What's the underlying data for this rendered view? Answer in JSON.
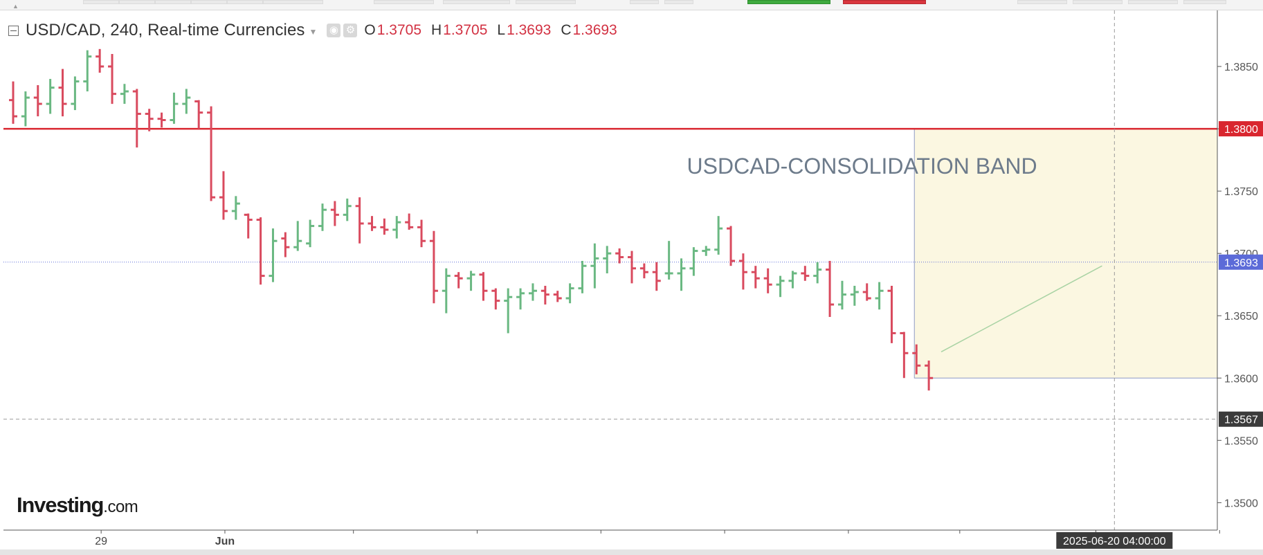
{
  "header": {
    "symbol": "USD/CAD, 240, Real-time Currencies",
    "ohlc": {
      "o_label": "O",
      "o": "1.3705",
      "h_label": "H",
      "h": "1.3705",
      "l_label": "L",
      "l": "1.3693",
      "c_label": "C",
      "c": "1.3693"
    }
  },
  "brand": {
    "main": "Investing",
    "suffix": ".com"
  },
  "colors": {
    "up": "#6ab882",
    "down": "#d94a5e",
    "resistance": "#d9262f",
    "current": "#5c6bd8",
    "crosshair_badge": "#3b3b3b",
    "box_fill": "#fbf7e1",
    "box_border": "#8e9bc4"
  },
  "chart_data": {
    "type": "ohlc",
    "title": "USD/CAD, 240, Real-time Currencies",
    "interval": "240",
    "ylim": [
      1.3478,
      1.3895
    ],
    "y_ticks": [
      1.35,
      1.355,
      1.36,
      1.365,
      1.37,
      1.375,
      1.38,
      1.385
    ],
    "x_labels": [
      {
        "bar": 7,
        "text": "29"
      },
      {
        "bar": 17,
        "text": "Jun"
      }
    ],
    "x_ticks": [
      28,
      38,
      48,
      58,
      68,
      77,
      88,
      98,
      108
    ],
    "lines": [
      {
        "name": "resistance",
        "price": 1.38,
        "label": "1.3800",
        "style": "solid"
      },
      {
        "name": "current",
        "price": 1.3693,
        "label": "1.3693",
        "style": "dotted"
      },
      {
        "name": "crosshair",
        "price": 1.3567,
        "label": "1.3567",
        "style": "dashed"
      }
    ],
    "annotations": [
      {
        "type": "rectangle",
        "x_from_bar": 73,
        "y_top": 1.38,
        "y_bottom": 1.36
      },
      {
        "type": "text",
        "text": "USDCAD-CONSOLIDATION BAND",
        "bar": 54,
        "price": 1.3764
      },
      {
        "type": "trendline",
        "from_bar": 75,
        "from_price": 1.3621,
        "to_bar": 88,
        "to_price": 1.369
      }
    ],
    "crosshair": {
      "bar": 89,
      "time_label": "2025-06-20 04:00:00"
    },
    "bars": [
      [
        1.3823,
        1.3838,
        1.3804,
        1.381
      ],
      [
        1.381,
        1.383,
        1.3802,
        1.3825
      ],
      [
        1.3825,
        1.3835,
        1.381,
        1.382
      ],
      [
        1.382,
        1.384,
        1.3812,
        1.3833
      ],
      [
        1.3833,
        1.3848,
        1.381,
        1.382
      ],
      [
        1.382,
        1.3842,
        1.3815,
        1.3838
      ],
      [
        1.3838,
        1.3863,
        1.383,
        1.3858
      ],
      [
        1.3858,
        1.3864,
        1.3845,
        1.385
      ],
      [
        1.385,
        1.386,
        1.382,
        1.3828
      ],
      [
        1.3828,
        1.3836,
        1.382,
        1.383
      ],
      [
        1.383,
        1.3832,
        1.3785,
        1.3812
      ],
      [
        1.3812,
        1.3816,
        1.3798,
        1.3808
      ],
      [
        1.3808,
        1.3813,
        1.3801,
        1.3807
      ],
      [
        1.3807,
        1.3829,
        1.3804,
        1.382
      ],
      [
        1.382,
        1.3832,
        1.3812,
        1.3825
      ],
      [
        1.3822,
        1.3823,
        1.38,
        1.3813
      ],
      [
        1.3813,
        1.3818,
        1.3742,
        1.3745
      ],
      [
        1.3745,
        1.3766,
        1.3727,
        1.3734
      ],
      [
        1.3734,
        1.3746,
        1.3727,
        1.374
      ],
      [
        1.3731,
        1.3732,
        1.3712,
        1.3727
      ],
      [
        1.3727,
        1.3729,
        1.3675,
        1.3682
      ],
      [
        1.3682,
        1.372,
        1.3677,
        1.371
      ],
      [
        1.3712,
        1.3717,
        1.3697,
        1.3705
      ],
      [
        1.3705,
        1.3726,
        1.3702,
        1.371
      ],
      [
        1.3708,
        1.3727,
        1.3705,
        1.3722
      ],
      [
        1.3722,
        1.374,
        1.3718,
        1.3735
      ],
      [
        1.3735,
        1.3742,
        1.3722,
        1.3731
      ],
      [
        1.3731,
        1.3744,
        1.3726,
        1.3738
      ],
      [
        1.3738,
        1.3745,
        1.3708,
        1.3724
      ],
      [
        1.3724,
        1.373,
        1.3718,
        1.3721
      ],
      [
        1.3721,
        1.3728,
        1.3715,
        1.3719
      ],
      [
        1.3719,
        1.373,
        1.3712,
        1.3725
      ],
      [
        1.3725,
        1.3732,
        1.3719,
        1.3721
      ],
      [
        1.3721,
        1.3727,
        1.3705,
        1.371
      ],
      [
        1.371,
        1.3718,
        1.366,
        1.367
      ],
      [
        1.367,
        1.3688,
        1.3652,
        1.3682
      ],
      [
        1.3682,
        1.3685,
        1.3672,
        1.368
      ],
      [
        1.368,
        1.3686,
        1.367,
        1.3683
      ],
      [
        1.3683,
        1.3685,
        1.3662,
        1.367
      ],
      [
        1.367,
        1.3672,
        1.3655,
        1.3662
      ],
      [
        1.3662,
        1.3672,
        1.3636,
        1.3665
      ],
      [
        1.3665,
        1.3672,
        1.3655,
        1.3668
      ],
      [
        1.3668,
        1.3676,
        1.3662,
        1.367
      ],
      [
        1.367,
        1.3674,
        1.3659,
        1.3667
      ],
      [
        1.3667,
        1.367,
        1.3661,
        1.3664
      ],
      [
        1.3664,
        1.3676,
        1.366,
        1.3672
      ],
      [
        1.3672,
        1.3694,
        1.3668,
        1.369
      ],
      [
        1.369,
        1.3708,
        1.3672,
        1.3696
      ],
      [
        1.3696,
        1.3706,
        1.3684,
        1.37
      ],
      [
        1.37,
        1.3704,
        1.3692,
        1.3697
      ],
      [
        1.3697,
        1.3702,
        1.3676,
        1.3688
      ],
      [
        1.3688,
        1.3692,
        1.368,
        1.3685
      ],
      [
        1.3685,
        1.3693,
        1.367,
        1.3678
      ],
      [
        1.3684,
        1.371,
        1.3679,
        1.3684
      ],
      [
        1.3684,
        1.3696,
        1.367,
        1.3688
      ],
      [
        1.3688,
        1.3705,
        1.3682,
        1.3702
      ],
      [
        1.3702,
        1.3706,
        1.3698,
        1.3703
      ],
      [
        1.3703,
        1.373,
        1.3699,
        1.372
      ],
      [
        1.372,
        1.3722,
        1.369,
        1.3694
      ],
      [
        1.3694,
        1.37,
        1.3671,
        1.3685
      ],
      [
        1.3685,
        1.369,
        1.3672,
        1.368
      ],
      [
        1.368,
        1.3688,
        1.3668,
        1.3675
      ],
      [
        1.3675,
        1.3682,
        1.3665,
        1.3678
      ],
      [
        1.3678,
        1.3686,
        1.3672,
        1.3684
      ],
      [
        1.3684,
        1.369,
        1.3678,
        1.3682
      ],
      [
        1.3682,
        1.3693,
        1.3676,
        1.3687
      ],
      [
        1.3687,
        1.3694,
        1.3649,
        1.3659
      ],
      [
        1.3659,
        1.3678,
        1.3655,
        1.3667
      ],
      [
        1.3667,
        1.3674,
        1.3658,
        1.3669
      ],
      [
        1.3669,
        1.3676,
        1.3662,
        1.3664
      ],
      [
        1.3664,
        1.3677,
        1.3655,
        1.367
      ],
      [
        1.367,
        1.3674,
        1.3628,
        1.3636
      ],
      [
        1.3636,
        1.3637,
        1.36,
        1.362
      ],
      [
        1.362,
        1.3627,
        1.3603,
        1.361
      ],
      [
        1.361,
        1.3614,
        1.359,
        1.36
      ]
    ]
  }
}
